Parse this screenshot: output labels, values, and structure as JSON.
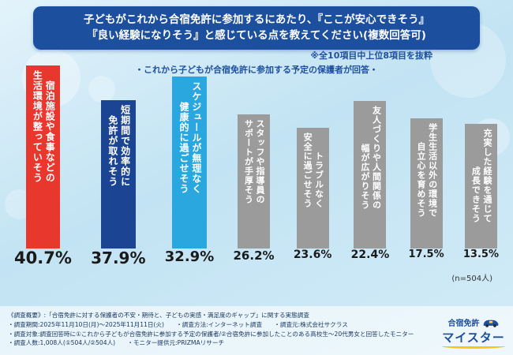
{
  "colors": {
    "header_bg": "#1d4f9f",
    "bar_red": "#e8372c",
    "bar_navy": "#1b4593",
    "bar_cyan": "#2aa7de",
    "bar_gray": "#9b9b9b",
    "note_text": "#1d4f9f",
    "swoosh_yellow": "#f7c51e"
  },
  "header": {
    "title_line1": "子どもがこれから合宿免許に参加するにあたり、『ここが安心できそう』",
    "title_line2": "『良い経験になりそう』と感じている点を教えてください(複数回答可)"
  },
  "notes": {
    "extract": "※全10項目中上位8項目を抜粋",
    "respondent": "・これから子どもが合宿免許に参加する予定の保護者が回答・"
  },
  "chart_data": {
    "type": "bar",
    "title": "子どもがこれから合宿免許に参加するにあたり、『ここが安心できそう』『良い経験になりそう』と感じている点を教えてください(複数回答可)",
    "unit": "%",
    "ylim": [
      0,
      45
    ],
    "grid": false,
    "legend": false,
    "n_label": "(n=504人)",
    "categories": [
      "宿泊施設や食事などの生活環境が整っていそう",
      "短期間で効率的に免許が取れそう",
      "スケジュールが無理なく健康的に過ごせそう",
      "スタッフや指導員のサポートが手厚そう",
      "トラブルなく安全に過ごせそう",
      "友人づくりや人間関係の幅が広がりそう",
      "学生生活以外の環境で自立心を育めそう",
      "充実した経験を通じて成長できそう"
    ],
    "values": [
      40.7,
      37.9,
      32.9,
      26.2,
      23.6,
      22.4,
      17.5,
      13.5
    ],
    "bars": [
      {
        "label": "宿泊施設や食事などの\n生活環境が整っていそう",
        "pct": "40.7%",
        "value": 40.7,
        "color": "#e8372c",
        "label_size": 12,
        "pct_size": 21
      },
      {
        "label": "短期間で効率的に\n免許が取れそう",
        "pct": "37.9%",
        "value": 37.9,
        "color": "#1b4593",
        "label_size": 12,
        "pct_size": 20
      },
      {
        "label": "スケジュールが無理なく\n健康的に過ごせそう",
        "pct": "32.9%",
        "value": 32.9,
        "color": "#2aa7de",
        "label_size": 12,
        "pct_size": 18
      },
      {
        "label": "スタッフや指導員の\nサポートが手厚そう",
        "pct": "26.2%",
        "value": 26.2,
        "color": "#9b9b9b",
        "label_size": 11,
        "pct_size": 15
      },
      {
        "label": "トラブルなく\n安全に過ごせそう",
        "pct": "23.6%",
        "value": 23.6,
        "color": "#9b9b9b",
        "label_size": 11,
        "pct_size": 14
      },
      {
        "label": "友人づくりや人間関係の\n幅が広がりそう",
        "pct": "22.4%",
        "value": 22.4,
        "color": "#9b9b9b",
        "label_size": 11,
        "pct_size": 14
      },
      {
        "label": "学生生活以外の環境で\n自立心を育めそう",
        "pct": "17.5%",
        "value": 17.5,
        "color": "#9b9b9b",
        "label_size": 11,
        "pct_size": 13
      },
      {
        "label": "充実した経験を通じて\n成長できそう",
        "pct": "13.5%",
        "value": 13.5,
        "color": "#9b9b9b",
        "label_size": 11,
        "pct_size": 13
      }
    ]
  },
  "footer": {
    "lines": [
      "《調査概要》:「合宿免許に対する保護者の不安・期待と、子どもの実感・満足度のギャップ」に関する実態調査",
      "・調査期間:2025年11月10日(月)〜2025年11月11日(火)　　・調査方法:インターネット調査　　・調査元:株式会社サクラス",
      "・調査対象:調査回答時に①これから子どもが合宿免許に参加する予定の保護者/②合宿免許に参加したことのある高校生〜20代男女と回答したモニター",
      "・調査人数:1,008人(①504人/②504人)　　・モニター提供元:PRIZMAリサーチ"
    ]
  },
  "logo": {
    "name_top": "合宿免許",
    "name_main": "マイスター"
  }
}
